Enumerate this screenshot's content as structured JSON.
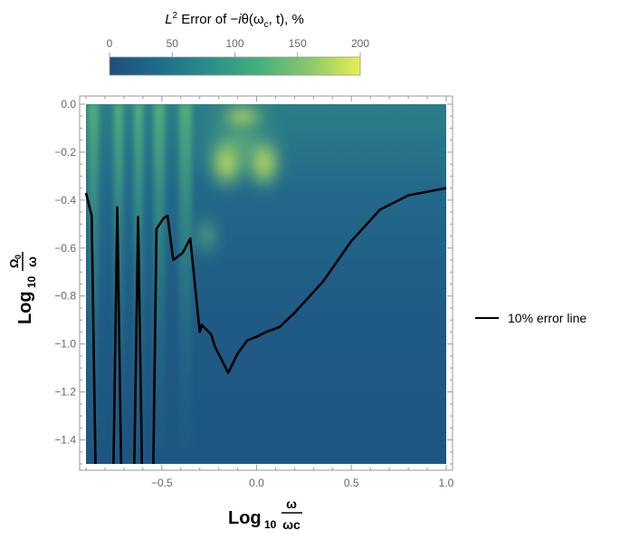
{
  "chart_data": {
    "type": "heatmap",
    "title": {
      "L": "L",
      "sup": "2",
      "mid": " Error of −",
      "i": "i",
      "theta": "θ(ω",
      "sub": "c",
      "end": ", t), %"
    },
    "xlabel": {
      "log": "Log",
      "base": "10",
      "num": "ω",
      "den": "ωc"
    },
    "ylabel": {
      "log": "Log",
      "base": "10",
      "num": "Ω",
      "num_sub": "0",
      "den": "ω"
    },
    "xlim": [
      -0.9,
      1.0
    ],
    "ylim": [
      -1.5,
      0.0
    ],
    "x_ticks": [
      {
        "value": -0.5,
        "label": "−0.5"
      },
      {
        "value": 0.0,
        "label": "0.0"
      },
      {
        "value": 0.5,
        "label": "0.5"
      },
      {
        "value": 1.0,
        "label": "1.0"
      }
    ],
    "y_ticks": [
      {
        "value": 0.0,
        "label": "0.0"
      },
      {
        "value": -0.2,
        "label": "−0.2"
      },
      {
        "value": -0.4,
        "label": "−0.4"
      },
      {
        "value": -0.6,
        "label": "−0.6"
      },
      {
        "value": -0.8,
        "label": "−0.8"
      },
      {
        "value": -1.0,
        "label": "−1.0"
      },
      {
        "value": -1.2,
        "label": "−1.2"
      },
      {
        "value": -1.4,
        "label": "−1.4"
      }
    ],
    "colorbar": {
      "range": [
        0,
        200
      ],
      "ticks": [
        {
          "value": 0,
          "label": "0"
        },
        {
          "value": 50,
          "label": "50"
        },
        {
          "value": 100,
          "label": "100"
        },
        {
          "value": 150,
          "label": "150"
        },
        {
          "value": 200,
          "label": "200"
        }
      ],
      "colors": [
        "#1f4e7a",
        "#1e6d8c",
        "#2a8f8a",
        "#45b07c",
        "#8cc86a",
        "#e6ef4e"
      ]
    },
    "legend": {
      "label": "10% error line",
      "placement": "right",
      "color": "#000000"
    },
    "contour_10pct": {
      "segments": [
        [
          [
            -0.9,
            -0.37
          ],
          [
            -0.87,
            -0.465
          ],
          [
            -0.85,
            -1.5
          ]
        ],
        [
          [
            -0.755,
            -1.5
          ],
          [
            -0.735,
            -0.43
          ],
          [
            -0.715,
            -1.5
          ]
        ],
        [
          [
            -0.645,
            -1.5
          ],
          [
            -0.625,
            -0.47
          ],
          [
            -0.605,
            -1.5
          ]
        ],
        [
          [
            -0.545,
            -1.5
          ],
          [
            -0.528,
            -0.52
          ],
          [
            -0.49,
            -0.475
          ],
          [
            -0.47,
            -0.465
          ],
          [
            -0.44,
            -0.65
          ],
          [
            -0.39,
            -0.62
          ],
          [
            -0.35,
            -0.56
          ],
          [
            -0.3,
            -0.95
          ],
          [
            -0.29,
            -0.92
          ],
          [
            -0.24,
            -0.96
          ],
          [
            -0.22,
            -1.01
          ],
          [
            -0.15,
            -1.12
          ],
          [
            -0.1,
            -1.04
          ],
          [
            -0.05,
            -0.985
          ],
          [
            0.0,
            -0.97
          ],
          [
            0.05,
            -0.95
          ],
          [
            0.12,
            -0.93
          ],
          [
            0.2,
            -0.87
          ],
          [
            0.35,
            -0.74
          ],
          [
            0.5,
            -0.57
          ],
          [
            0.65,
            -0.44
          ],
          [
            0.8,
            -0.38
          ],
          [
            1.0,
            -0.35
          ]
        ]
      ]
    }
  }
}
